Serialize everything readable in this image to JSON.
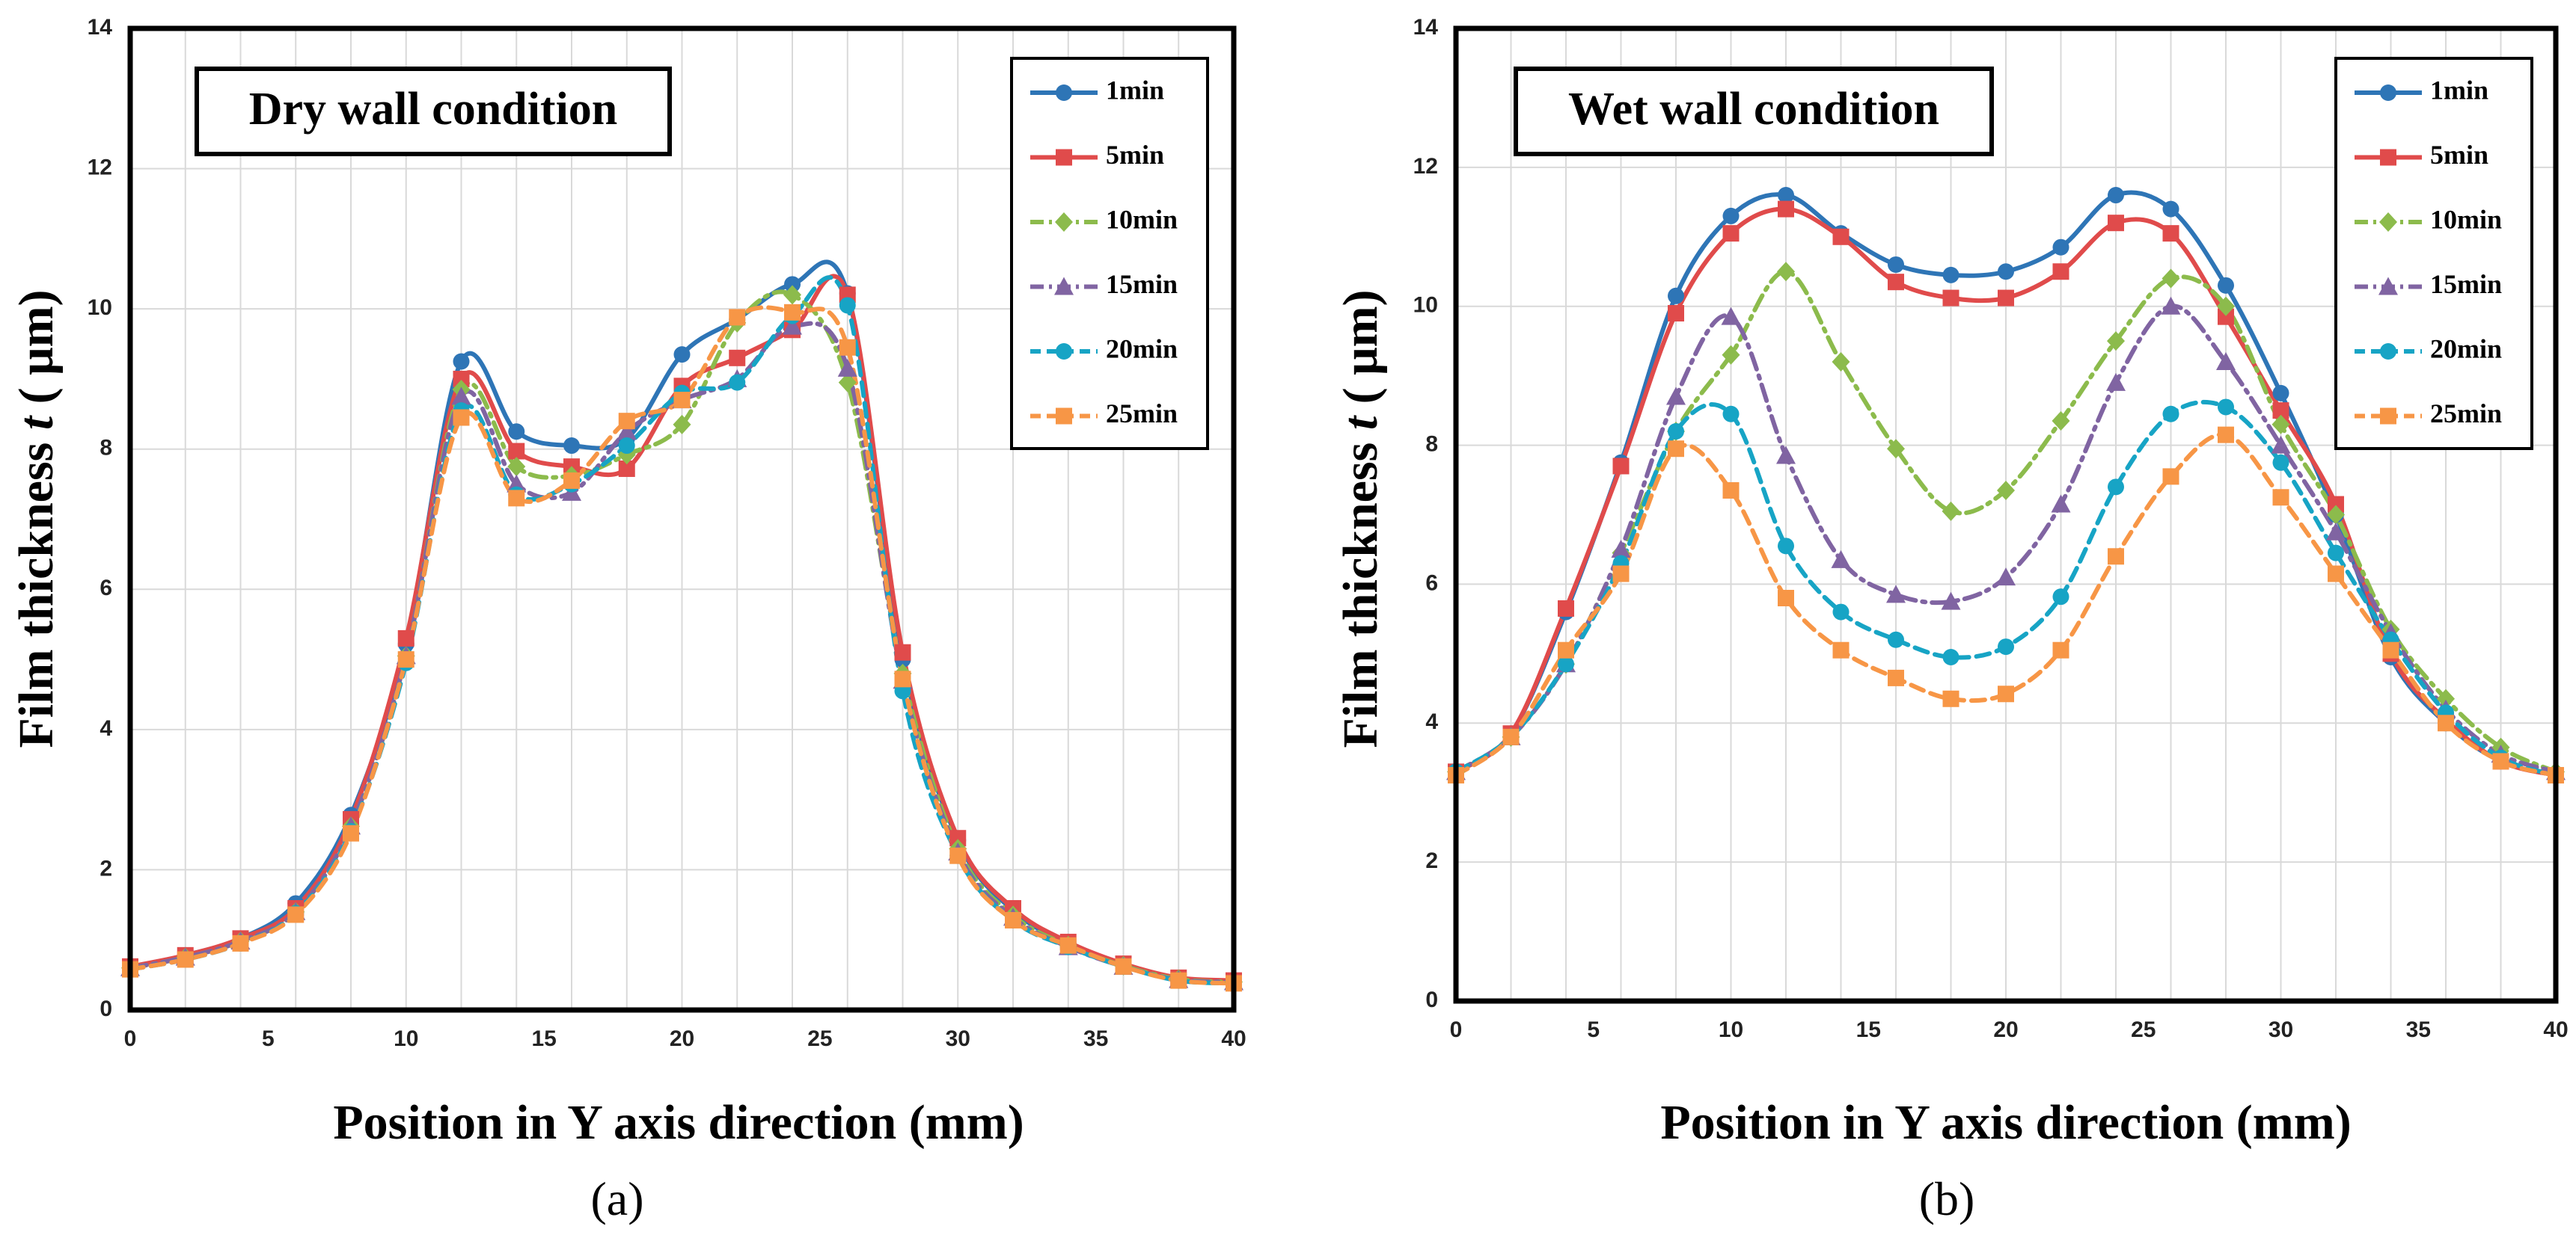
{
  "chart_data": [
    {
      "type": "line",
      "panel_label": "(a)",
      "condition_label": "Dry wall condition",
      "xlabel": "Position in Y axis direction (mm)",
      "ylabel_prefix": "Film thickness ",
      "ylabel_var": "t",
      "ylabel_unit": " ( μm)",
      "xlim": [
        0,
        40
      ],
      "ylim": [
        0,
        14
      ],
      "xticks": [
        "0",
        "5",
        "10",
        "15",
        "20",
        "25",
        "30",
        "35",
        "40"
      ],
      "yticks": [
        "0",
        "2",
        "4",
        "6",
        "8",
        "10",
        "12",
        "14"
      ],
      "x": [
        0,
        2,
        4,
        6,
        8,
        10,
        12,
        14,
        16,
        18,
        20,
        22,
        24,
        26,
        28,
        30,
        32,
        34,
        36,
        38,
        40
      ],
      "grid": true,
      "legend_position": "top-right",
      "series": [
        {
          "name": "1min",
          "color": "#2e75b6",
          "marker": "circle",
          "dash": "solid",
          "values": [
            0.6,
            0.78,
            1.02,
            1.52,
            2.78,
            5.22,
            9.25,
            8.25,
            8.05,
            8.15,
            9.35,
            9.85,
            10.35,
            10.22,
            5.0,
            2.42,
            1.42,
            0.95,
            0.65,
            0.45,
            0.42
          ]
        },
        {
          "name": "5min",
          "color": "#e04b4b",
          "marker": "square",
          "dash": "solid",
          "values": [
            0.62,
            0.78,
            1.02,
            1.45,
            2.72,
            5.3,
            9.0,
            7.97,
            7.75,
            7.72,
            8.9,
            9.3,
            9.7,
            10.2,
            5.1,
            2.45,
            1.45,
            0.97,
            0.66,
            0.46,
            0.42
          ]
        },
        {
          "name": "10min",
          "color": "#8cbb4c",
          "marker": "diamond",
          "dash": "dashdot",
          "values": [
            0.6,
            0.75,
            0.98,
            1.4,
            2.62,
            5.05,
            8.85,
            7.75,
            7.62,
            7.92,
            8.35,
            9.8,
            10.2,
            8.95,
            4.8,
            2.3,
            1.35,
            0.92,
            0.63,
            0.44,
            0.4
          ]
        },
        {
          "name": "15min",
          "color": "#8064a2",
          "marker": "triangle",
          "dash": "dashdot",
          "values": [
            0.6,
            0.75,
            0.98,
            1.4,
            2.62,
            5.05,
            8.75,
            7.5,
            7.38,
            8.25,
            8.7,
            9.0,
            9.75,
            9.15,
            4.7,
            2.25,
            1.32,
            0.9,
            0.62,
            0.43,
            0.4
          ]
        },
        {
          "name": "20min",
          "color": "#17a4c5",
          "marker": "circle",
          "dash": "dashed",
          "values": [
            0.58,
            0.72,
            0.95,
            1.38,
            2.55,
            4.95,
            8.55,
            7.35,
            7.5,
            8.05,
            8.8,
            8.95,
            9.9,
            10.05,
            4.55,
            2.2,
            1.28,
            0.9,
            0.62,
            0.42,
            0.38
          ]
        },
        {
          "name": "25min",
          "color": "#f79646",
          "marker": "square",
          "dash": "dashed",
          "values": [
            0.58,
            0.72,
            0.95,
            1.36,
            2.52,
            5.0,
            8.45,
            7.3,
            7.55,
            8.4,
            8.7,
            9.88,
            9.95,
            9.45,
            4.72,
            2.2,
            1.28,
            0.92,
            0.62,
            0.42,
            0.38
          ]
        }
      ]
    },
    {
      "type": "line",
      "panel_label": "(b)",
      "condition_label": "Wet wall condition",
      "xlabel": "Position in Y axis direction (mm)",
      "ylabel_prefix": "Film thickness ",
      "ylabel_var": "t",
      "ylabel_unit": " ( μm)",
      "xlim": [
        0,
        40
      ],
      "ylim": [
        0,
        14
      ],
      "xticks": [
        "0",
        "5",
        "10",
        "15",
        "20",
        "25",
        "30",
        "35",
        "40"
      ],
      "yticks": [
        "0",
        "2",
        "4",
        "6",
        "8",
        "10",
        "12",
        "14"
      ],
      "x": [
        0,
        2,
        4,
        6,
        8,
        10,
        12,
        14,
        16,
        18,
        20,
        22,
        24,
        26,
        28,
        30,
        32,
        34,
        36,
        38,
        40
      ],
      "grid": true,
      "legend_position": "top-right",
      "series": [
        {
          "name": "1min",
          "color": "#2e75b6",
          "marker": "circle",
          "dash": "solid",
          "values": [
            3.3,
            3.85,
            5.6,
            7.75,
            10.15,
            11.3,
            11.6,
            11.05,
            10.6,
            10.45,
            10.5,
            10.85,
            11.6,
            11.4,
            10.3,
            8.75,
            7.0,
            4.95,
            4.0,
            3.45,
            3.25
          ]
        },
        {
          "name": "5min",
          "color": "#e04b4b",
          "marker": "square",
          "dash": "solid",
          "values": [
            3.3,
            3.85,
            5.65,
            7.7,
            9.9,
            11.05,
            11.4,
            11.0,
            10.35,
            10.12,
            10.12,
            10.5,
            11.2,
            11.05,
            9.85,
            8.5,
            7.15,
            5.0,
            4.05,
            3.45,
            3.25
          ]
        },
        {
          "name": "10min",
          "color": "#8cbb4c",
          "marker": "diamond",
          "dash": "dashdot",
          "values": [
            3.3,
            3.8,
            4.85,
            6.45,
            8.2,
            9.3,
            10.5,
            9.2,
            7.95,
            7.05,
            7.35,
            8.35,
            9.5,
            10.4,
            10.0,
            8.3,
            7.0,
            5.35,
            4.35,
            3.65,
            3.3
          ]
        },
        {
          "name": "15min",
          "color": "#8064a2",
          "marker": "triangle",
          "dash": "dashdot",
          "values": [
            3.3,
            3.8,
            4.85,
            6.5,
            8.7,
            9.85,
            7.85,
            6.35,
            5.85,
            5.75,
            6.1,
            7.15,
            8.9,
            10.0,
            9.2,
            8.0,
            6.75,
            5.3,
            4.2,
            3.55,
            3.3
          ]
        },
        {
          "name": "20min",
          "color": "#17a4c5",
          "marker": "circle",
          "dash": "dashed",
          "values": [
            3.3,
            3.8,
            4.85,
            6.3,
            8.2,
            8.45,
            6.55,
            5.6,
            5.2,
            4.95,
            5.1,
            5.82,
            7.4,
            8.45,
            8.55,
            7.75,
            6.45,
            5.2,
            4.15,
            3.5,
            3.25
          ]
        },
        {
          "name": "25min",
          "color": "#f79646",
          "marker": "square",
          "dash": "dashed",
          "values": [
            3.25,
            3.8,
            5.05,
            6.15,
            7.95,
            7.35,
            5.8,
            5.05,
            4.65,
            4.35,
            4.42,
            5.05,
            6.4,
            7.55,
            8.15,
            7.25,
            6.15,
            5.05,
            4.0,
            3.45,
            3.25
          ]
        }
      ]
    }
  ]
}
